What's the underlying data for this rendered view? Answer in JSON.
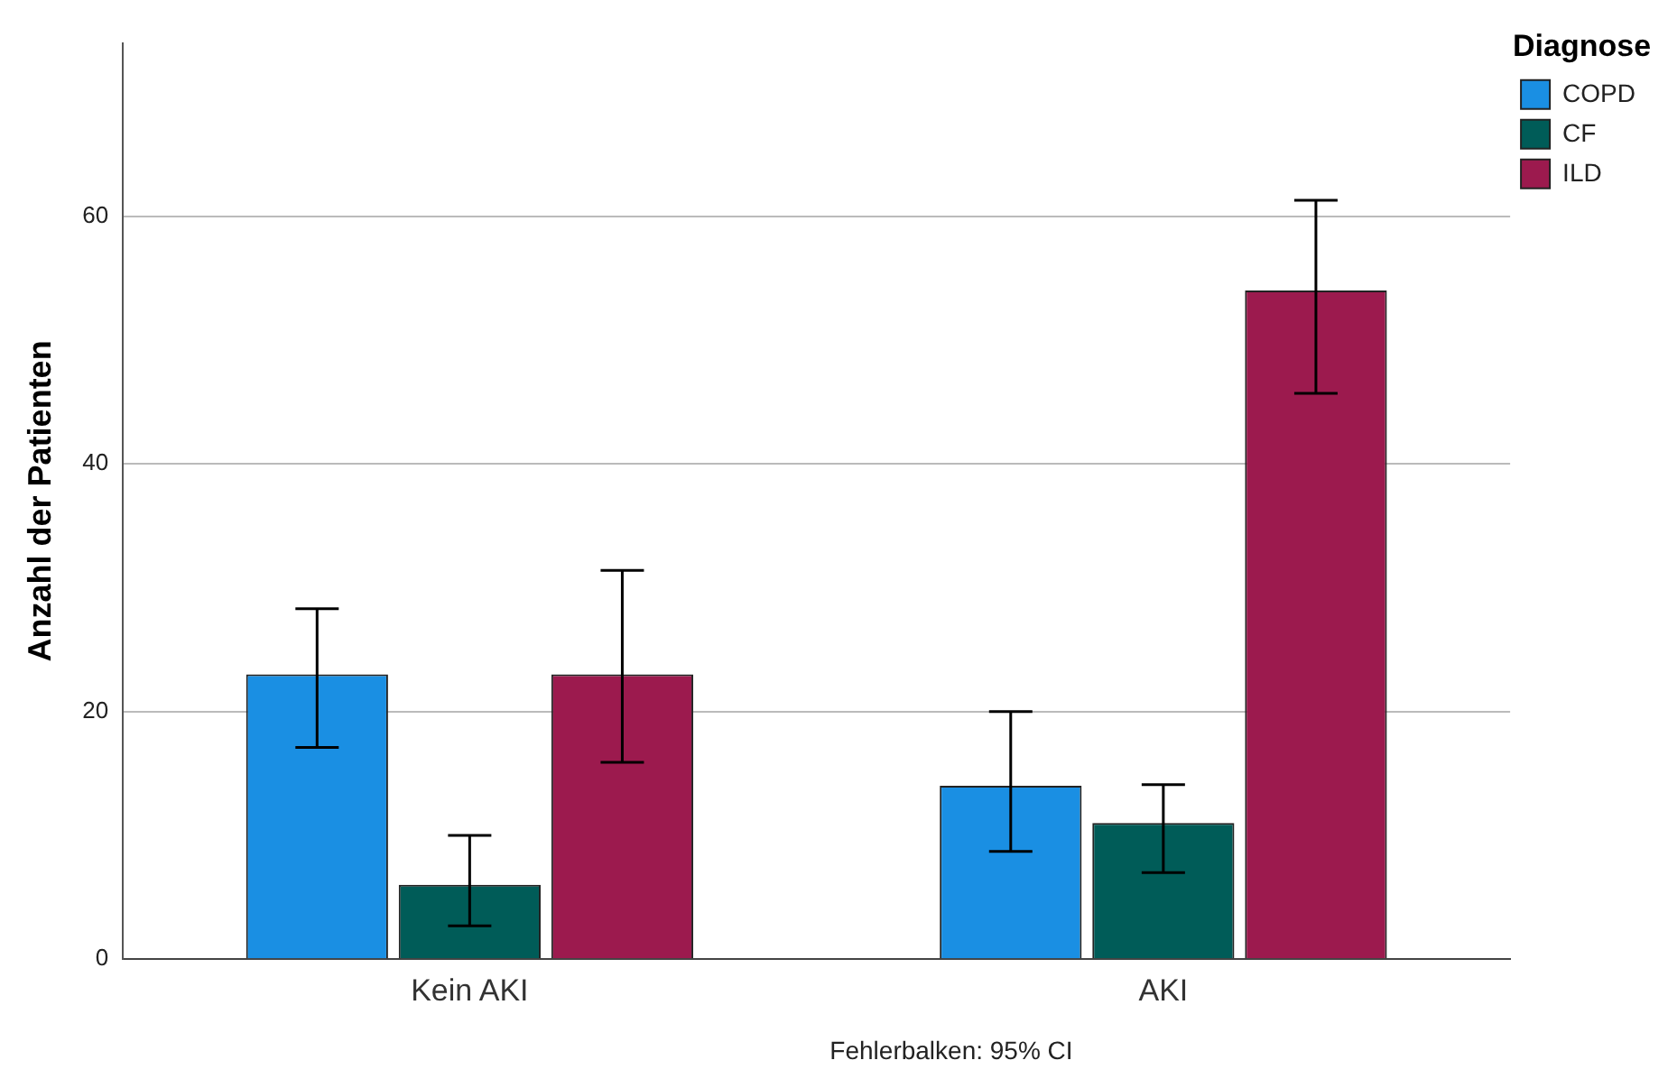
{
  "chart_data": {
    "type": "bar",
    "ylabel": "Anzahl der Patienten",
    "legend_title": "Diagnose",
    "categories": [
      "Kein AKI",
      "AKI"
    ],
    "series": [
      {
        "name": "COPD",
        "color": "#1a8fe3",
        "values": [
          23,
          14
        ],
        "errors": [
          [
            17.1,
            28.3
          ],
          [
            8.7,
            20
          ]
        ]
      },
      {
        "name": "CF",
        "color": "#005c58",
        "values": [
          6,
          11
        ],
        "errors": [
          [
            2.7,
            10
          ],
          [
            7,
            14.1
          ]
        ]
      },
      {
        "name": "ILD",
        "color": "#9c1a4e",
        "values": [
          23,
          54
        ],
        "errors": [
          [
            15.9,
            31.4
          ],
          [
            45.7,
            61.3
          ]
        ]
      }
    ],
    "ylim": [
      0,
      74
    ],
    "yticks": [
      0,
      20,
      40,
      60
    ],
    "grid": "y",
    "legend": "top right",
    "annotations": [
      "Fehlerbalken: 95% CI"
    ]
  }
}
